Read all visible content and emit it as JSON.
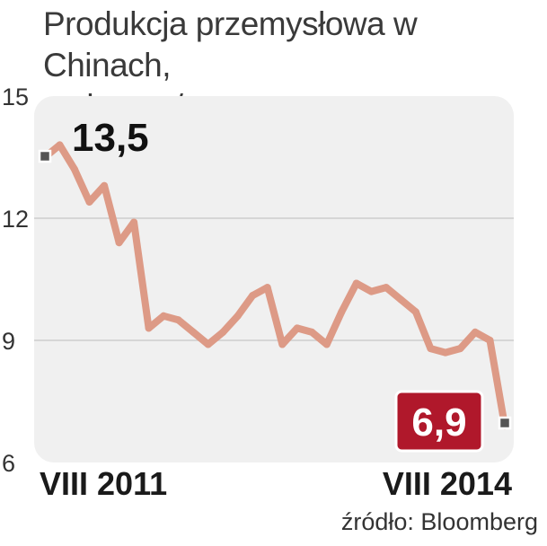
{
  "chart_data": {
    "type": "line",
    "title": "Produkcja przemysłowa w Chinach,",
    "subtitle": "zmiana r./r., w proc.",
    "x_start_label": "VIII 2011",
    "x_end_label": "VIII 2014",
    "ylim": [
      6,
      15
    ],
    "yticks": [
      6,
      9,
      12,
      15
    ],
    "ytick_labels": [
      "6",
      "9",
      "12",
      "15"
    ],
    "grid": true,
    "values": [
      13.5,
      13.8,
      13.2,
      12.4,
      12.8,
      11.4,
      11.9,
      9.3,
      9.6,
      9.5,
      9.2,
      8.9,
      9.2,
      9.6,
      10.1,
      10.3,
      8.9,
      9.3,
      9.2,
      8.9,
      9.7,
      10.4,
      10.2,
      10.3,
      10.0,
      9.7,
      8.8,
      8.7,
      8.8,
      9.2,
      9.0,
      6.9
    ],
    "start_label": "13,5",
    "end_label": "6,9",
    "line_color": "#dd9a86",
    "highlight_color": "#b0182b"
  },
  "source": "źródło: Bloomberg"
}
